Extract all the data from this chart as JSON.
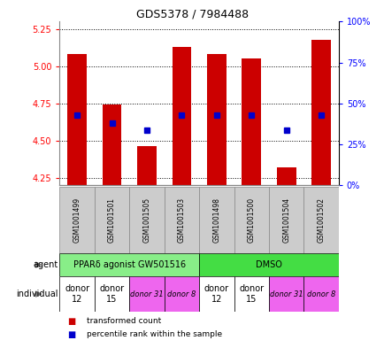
{
  "title": "GDS5378 / 7984488",
  "samples": [
    "GSM1001499",
    "GSM1001501",
    "GSM1001505",
    "GSM1001503",
    "GSM1001498",
    "GSM1001500",
    "GSM1001504",
    "GSM1001502"
  ],
  "bar_values": [
    5.08,
    4.74,
    4.46,
    5.13,
    5.08,
    5.05,
    4.32,
    5.18
  ],
  "blue_values": [
    4.67,
    4.62,
    4.57,
    4.67,
    4.67,
    4.67,
    4.57,
    4.67
  ],
  "ylim_left": [
    4.2,
    5.3
  ],
  "ylim_right": [
    0,
    100
  ],
  "yticks_left": [
    4.25,
    4.5,
    4.75,
    5.0,
    5.25
  ],
  "yticks_right": [
    0,
    25,
    50,
    75,
    100
  ],
  "bar_color": "#cc0000",
  "blue_color": "#0000cc",
  "bar_bottom": 4.2,
  "agent_groups": [
    {
      "label": "PPARδ agonist GW501516",
      "start": 0,
      "end": 4,
      "color": "#88ee88"
    },
    {
      "label": "DMSO",
      "start": 4,
      "end": 8,
      "color": "#44dd44"
    }
  ],
  "individual_groups": [
    {
      "label": "donor\n12",
      "start": 0,
      "end": 1,
      "color": "#ffffff",
      "fontsize": 7,
      "italic": false
    },
    {
      "label": "donor\n15",
      "start": 1,
      "end": 2,
      "color": "#ffffff",
      "fontsize": 7,
      "italic": false
    },
    {
      "label": "donor 31",
      "start": 2,
      "end": 3,
      "color": "#ee66ee",
      "fontsize": 6,
      "italic": true
    },
    {
      "label": "donor 8",
      "start": 3,
      "end": 4,
      "color": "#ee66ee",
      "fontsize": 6,
      "italic": true
    },
    {
      "label": "donor\n12",
      "start": 4,
      "end": 5,
      "color": "#ffffff",
      "fontsize": 7,
      "italic": false
    },
    {
      "label": "donor\n15",
      "start": 5,
      "end": 6,
      "color": "#ffffff",
      "fontsize": 7,
      "italic": false
    },
    {
      "label": "donor 31",
      "start": 6,
      "end": 7,
      "color": "#ee66ee",
      "fontsize": 6,
      "italic": true
    },
    {
      "label": "donor 8",
      "start": 7,
      "end": 8,
      "color": "#ee66ee",
      "fontsize": 6,
      "italic": true
    }
  ],
  "legend_items": [
    {
      "color": "#cc0000",
      "label": "transformed count"
    },
    {
      "color": "#0000cc",
      "label": "percentile rank within the sample"
    }
  ],
  "sample_bg_color": "#cccccc",
  "sample_border_color": "#888888"
}
